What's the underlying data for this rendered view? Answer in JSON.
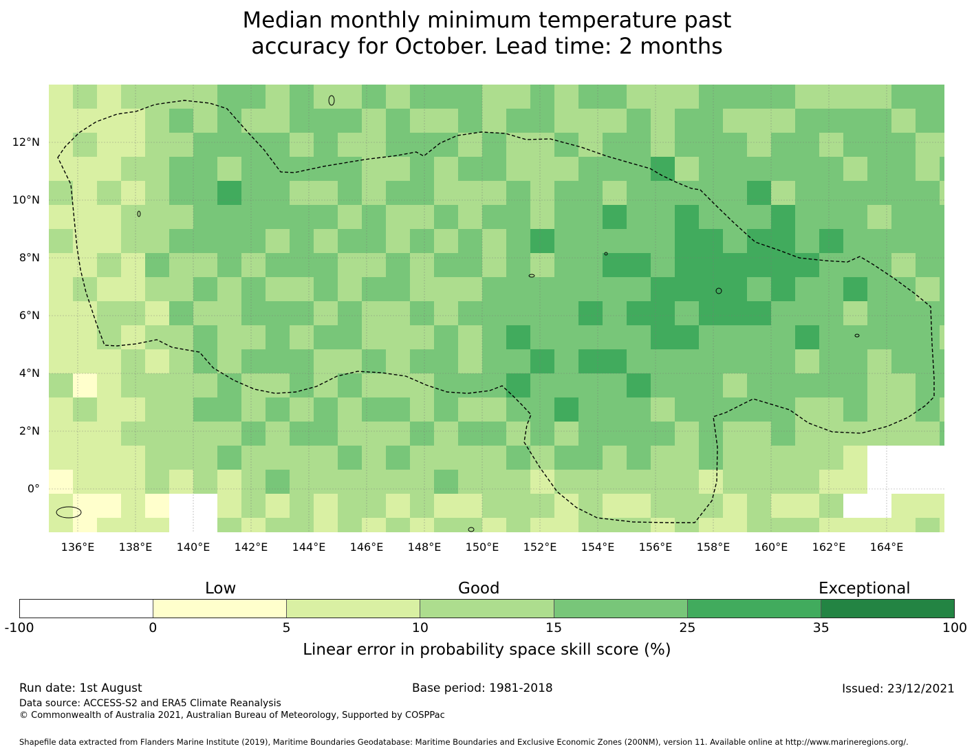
{
  "title": {
    "line1": "Median monthly minimum temperature past",
    "line2": "accuracy for October. Lead time: 2 months"
  },
  "map": {
    "lat_ticks": [
      "12°N",
      "10°N",
      "8°N",
      "6°N",
      "4°N",
      "2°N",
      "0°"
    ],
    "lon_ticks": [
      "136°E",
      "138°E",
      "140°E",
      "142°E",
      "144°E",
      "146°E",
      "148°E",
      "150°E",
      "152°E",
      "154°E",
      "156°E",
      "158°E",
      "160°E",
      "162°E",
      "164°E"
    ],
    "lat_tick_values": [
      12,
      10,
      8,
      6,
      4,
      2,
      0
    ],
    "lon_tick_values": [
      136,
      138,
      140,
      142,
      144,
      146,
      148,
      150,
      152,
      154,
      156,
      158,
      160,
      162,
      164
    ],
    "extent": {
      "lon_min": 135,
      "lon_max": 166,
      "lat_min": -1.5,
      "lat_max": 14
    },
    "grid_cell_deg": 0.83,
    "boundary_color": "#000000",
    "gridline_color": "#777777"
  },
  "legend": {
    "categories": [
      "Low",
      "Good",
      "Exceptional"
    ],
    "ticks": [
      "-100",
      "0",
      "5",
      "10",
      "15",
      "25",
      "35",
      "100"
    ],
    "bins": [
      {
        "range": [
          -100,
          0
        ],
        "color": "#ffffff"
      },
      {
        "range": [
          0,
          5
        ],
        "color": "#ffffcc"
      },
      {
        "range": [
          5,
          10
        ],
        "color": "#d9f0a3"
      },
      {
        "range": [
          10,
          15
        ],
        "color": "#addd8e"
      },
      {
        "range": [
          15,
          25
        ],
        "color": "#78c679"
      },
      {
        "range": [
          25,
          35
        ],
        "color": "#41ab5d"
      },
      {
        "range": [
          35,
          100
        ],
        "color": "#238443"
      }
    ],
    "label": "Linear error in probability space skill score (%)"
  },
  "footer": {
    "run_date": "Run date: 1st August",
    "base_period": "Base period: 1981-2018",
    "issued": "Issued: 23/12/2021",
    "data_source": "Data source: ACCESS-S2 and ERA5 Climate Reanalysis",
    "copyright": "© Commonwealth of Australia 2021, Australian Bureau of Meteorology, Supported by COSPPac",
    "shapefile": "Shapefile data extracted from Flanders Marine Institute (2019), Maritime Boundaries Geodatabase: Maritime Boundaries and Exclusive Economic Zones (200NM), version 11. Available online at http://www.marineregions.org/."
  }
}
